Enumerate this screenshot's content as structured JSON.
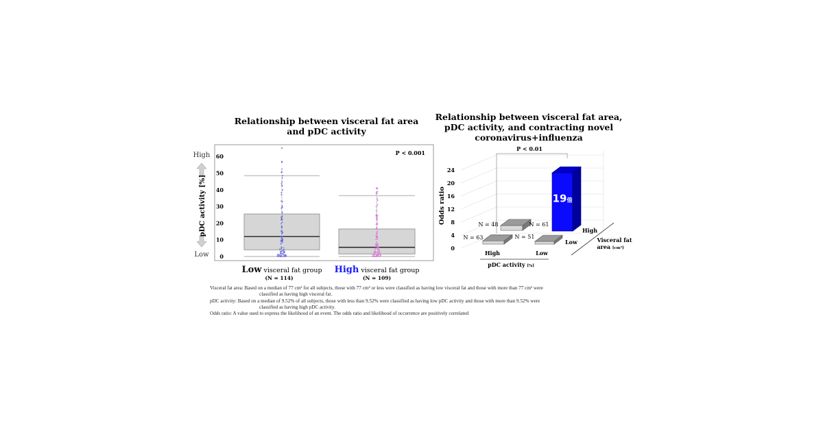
{
  "chart_data": [
    {
      "type": "box",
      "title": "Relationship between visceral fat area and pDC activity",
      "title_lines": [
        "Relationship between visceral fat area",
        "and pDC activity"
      ],
      "ylabel": "pDC activity [%]",
      "y_high_label": "High",
      "y_low_label": "Low",
      "ylim": [
        0,
        65
      ],
      "yticks": [
        "0",
        "10",
        "20",
        "30",
        "40",
        "50",
        "60"
      ],
      "p_value": "P < 0.001",
      "grid": false,
      "groups": [
        {
          "label_strong": "Low",
          "label_rest": "visceral fat group",
          "n": "(N = 114)",
          "whisker_low": 0,
          "q1": 4,
          "median": 12,
          "q3": 25.5,
          "whisker_high": 48.5,
          "point_color": "#6b6bdc",
          "label_color": "#111111"
        },
        {
          "label_strong": "High",
          "label_rest": "visceral fat group",
          "n": "(N = 109)",
          "whisker_low": 0,
          "q1": 1.5,
          "median": 5.5,
          "q3": 16.5,
          "whisker_high": 36.5,
          "point_color": "#d87ad8",
          "label_color": "#1a1aff"
        }
      ]
    },
    {
      "type": "bar3d",
      "title_lines": [
        "Relationship between visceral fat area,",
        "pDC activity, and contracting novel",
        "coronavirus+influenza"
      ],
      "ylabel": "Odds ratio",
      "ylim": [
        0,
        24
      ],
      "yticks": [
        "0",
        "4",
        "8",
        "12",
        "16",
        "20",
        "24"
      ],
      "p_value": "P < 0.01",
      "x_axis_label": "pDC activity",
      "x_axis_unit": "[%]",
      "x_categories": [
        "High",
        "Low"
      ],
      "depth_axis_label": [
        "Visceral fat",
        "area"
      ],
      "depth_axis_unit": "[cm²]",
      "depth_categories": [
        "High",
        "Low"
      ],
      "bars": [
        {
          "pdc": "High",
          "visceral_fat": "High",
          "n": "N = 48",
          "value": 1.5,
          "color": "#d9d9d9"
        },
        {
          "pdc": "Low",
          "visceral_fat": "High",
          "n": "N = 61",
          "value": 19,
          "color": "#0a0aff",
          "label": "19",
          "label_suffix": "倍"
        },
        {
          "pdc": "High",
          "visceral_fat": "Low",
          "n": "N = 63",
          "value": 1,
          "color": "#d9d9d9"
        },
        {
          "pdc": "Low",
          "visceral_fat": "Low",
          "n": "N = 51",
          "value": 0.5,
          "color": "#d9d9d9"
        }
      ]
    }
  ],
  "notes": {
    "vfa_1": "Visceral fat area: Based on a median of 77 cm² for all subjects, those with 77 cm² or less were classified as having low visceral fat and those with more than 77 cm² were",
    "vfa_2": "classified as having high visceral fat.",
    "pdc_1": "pDC activity: Based on a median of 9.52% of all subjects, those with less than 9.52% were classified as having low pDC activity and those with more than 9.52% were",
    "pdc_2": "classified as having high pDC activity.",
    "odds": "Odds ratio:  A value used to express the likelihood of an event. The odds ratio and likelihood of occurrence are positively correlated"
  }
}
